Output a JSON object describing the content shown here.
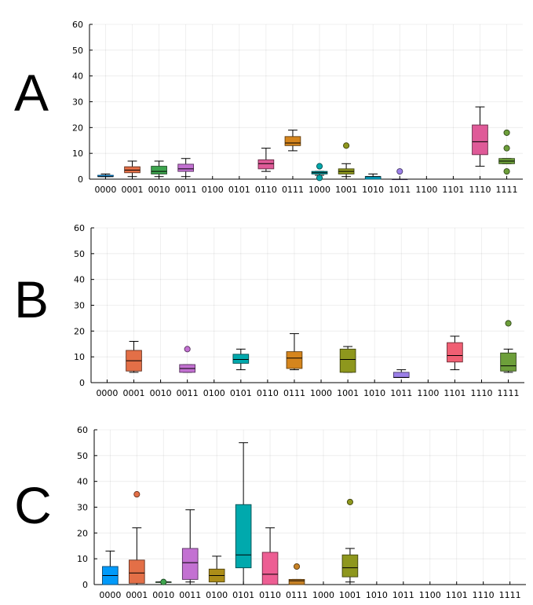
{
  "chart_data": [
    {
      "type": "box",
      "label": "A",
      "title": "",
      "xlabel": "",
      "ylabel": "",
      "ylim": [
        0,
        60
      ],
      "yticks": [
        0,
        10,
        20,
        30,
        40,
        50,
        60
      ],
      "grid": true,
      "categories": [
        "0000",
        "0001",
        "0010",
        "0011",
        "0100",
        "0101",
        "0110",
        "0111",
        "1000",
        "1001",
        "1010",
        "1011",
        "1100",
        "1101",
        "1110",
        "1111"
      ],
      "boxes": [
        {
          "category": "0000",
          "color": "#009AFA",
          "min": 1,
          "q1": 1,
          "median": 1,
          "q3": 1.5,
          "max": 2,
          "outliers": []
        },
        {
          "category": "0001",
          "color": "#E36F47",
          "min": 1,
          "q1": 2.5,
          "median": 3.5,
          "q3": 4.8,
          "max": 7,
          "outliers": []
        },
        {
          "category": "0010",
          "color": "#3EA44E",
          "min": 1,
          "q1": 2,
          "median": 3,
          "q3": 5,
          "max": 7,
          "outliers": []
        },
        {
          "category": "0011",
          "color": "#C371D2",
          "min": 1,
          "q1": 3,
          "median": 4,
          "q3": 5.8,
          "max": 8,
          "outliers": []
        },
        {
          "category": "0110",
          "color": "#DF5A98",
          "min": 3,
          "q1": 4,
          "median": 6,
          "q3": 7.5,
          "max": 12,
          "outliers": []
        },
        {
          "category": "0111",
          "color": "#D5851D",
          "min": 11,
          "q1": 13,
          "median": 14,
          "q3": 16.5,
          "max": 19,
          "outliers": []
        },
        {
          "category": "1000",
          "color": "#00A9AD",
          "min": 1.5,
          "q1": 2,
          "median": 2.5,
          "q3": 3,
          "max": 3,
          "outliers": [
            5,
            0.5
          ]
        },
        {
          "category": "1001",
          "color": "#8E971D",
          "min": 1,
          "q1": 2,
          "median": 3,
          "q3": 4,
          "max": 6,
          "outliers": [
            13
          ]
        },
        {
          "category": "1010",
          "color": "#00A8CB",
          "min": 0,
          "q1": 0,
          "median": 1,
          "q3": 1,
          "max": 2,
          "outliers": []
        },
        {
          "category": "1011",
          "color": "#9B7FE8",
          "min": 0,
          "q1": 0,
          "median": 0,
          "q3": 0,
          "max": 0,
          "outliers": [
            3
          ]
        },
        {
          "category": "1110",
          "color": "#DF5A98",
          "min": 5,
          "q1": 9.5,
          "median": 14.5,
          "q3": 21,
          "max": 28,
          "outliers": []
        },
        {
          "category": "1111",
          "color": "#6D9F3A",
          "min": 6,
          "q1": 6,
          "median": 7,
          "q3": 8,
          "max": 8,
          "outliers": [
            18,
            12,
            3
          ]
        }
      ]
    },
    {
      "type": "box",
      "label": "B",
      "title": "",
      "xlabel": "",
      "ylabel": "",
      "ylim": [
        0,
        60
      ],
      "yticks": [
        0,
        10,
        20,
        30,
        40,
        50,
        60
      ],
      "grid": true,
      "categories": [
        "0000",
        "0001",
        "0010",
        "0011",
        "0100",
        "0101",
        "0110",
        "0111",
        "1000",
        "1001",
        "1010",
        "1011",
        "1100",
        "1101",
        "1110",
        "1111"
      ],
      "boxes": [
        {
          "category": "0001",
          "color": "#E36F47",
          "min": 4,
          "q1": 4.5,
          "median": 8.5,
          "q3": 12.5,
          "max": 16,
          "outliers": []
        },
        {
          "category": "0011",
          "color": "#C371D2",
          "min": 4,
          "q1": 4,
          "median": 5.5,
          "q3": 7,
          "max": 7,
          "outliers": [
            13
          ]
        },
        {
          "category": "0101",
          "color": "#00A9AD",
          "min": 5,
          "q1": 7.5,
          "median": 9,
          "q3": 11,
          "max": 13,
          "outliers": []
        },
        {
          "category": "0111",
          "color": "#D5851D",
          "min": 5,
          "q1": 5.5,
          "median": 9.5,
          "q3": 12,
          "max": 19,
          "outliers": []
        },
        {
          "category": "1001",
          "color": "#8E971D",
          "min": 4,
          "q1": 4,
          "median": 9,
          "q3": 13,
          "max": 14,
          "outliers": []
        },
        {
          "category": "1011",
          "color": "#9B7FE8",
          "min": 2,
          "q1": 2,
          "median": 2,
          "q3": 4,
          "max": 5,
          "outliers": []
        },
        {
          "category": "1101",
          "color": "#F05F73",
          "min": 5,
          "q1": 8,
          "median": 10.5,
          "q3": 15.5,
          "max": 18,
          "outliers": []
        },
        {
          "category": "1111",
          "color": "#6D9F3A",
          "min": 4,
          "q1": 4.5,
          "median": 6.5,
          "q3": 11.5,
          "max": 13,
          "outliers": [
            23
          ]
        }
      ]
    },
    {
      "type": "box",
      "label": "C",
      "title": "",
      "xlabel": "",
      "ylabel": "",
      "ylim": [
        0,
        60
      ],
      "yticks": [
        0,
        10,
        20,
        30,
        40,
        50,
        60
      ],
      "grid": true,
      "categories": [
        "0000",
        "0001",
        "0010",
        "0011",
        "0100",
        "0101",
        "0110",
        "0111",
        "1000",
        "1001",
        "1010",
        "1011",
        "1100",
        "1101",
        "1110",
        "1111"
      ],
      "boxes": [
        {
          "category": "0000",
          "color": "#009AFA",
          "min": 0,
          "q1": 0,
          "median": 3.5,
          "q3": 7,
          "max": 13,
          "outliers": []
        },
        {
          "category": "0001",
          "color": "#E36F47",
          "min": 0,
          "q1": 0.5,
          "median": 4.5,
          "q3": 9.5,
          "max": 22,
          "outliers": [
            35
          ]
        },
        {
          "category": "0010",
          "color": "#3EA44E",
          "min": 1,
          "q1": 1,
          "median": 1,
          "q3": 1,
          "max": 1,
          "outliers": [
            1
          ]
        },
        {
          "category": "0011",
          "color": "#C371D2",
          "min": 1,
          "q1": 2,
          "median": 8.5,
          "q3": 14,
          "max": 29,
          "outliers": []
        },
        {
          "category": "0100",
          "color": "#AC8D18",
          "min": 0,
          "q1": 1,
          "median": 3.5,
          "q3": 6,
          "max": 11,
          "outliers": []
        },
        {
          "category": "0101",
          "color": "#00A9AD",
          "min": 0,
          "q1": 6.5,
          "median": 11.5,
          "q3": 31,
          "max": 55,
          "outliers": []
        },
        {
          "category": "0110",
          "color": "#ED5E93",
          "min": 0,
          "q1": 0,
          "median": 4,
          "q3": 12.5,
          "max": 22,
          "outliers": []
        },
        {
          "category": "0111",
          "color": "#C68125",
          "min": 0,
          "q1": 0,
          "median": 1.5,
          "q3": 2,
          "max": 2,
          "outliers": [
            7
          ]
        },
        {
          "category": "1001",
          "color": "#8E971D",
          "min": 1,
          "q1": 3,
          "median": 6.5,
          "q3": 11.5,
          "max": 14,
          "outliers": [
            32
          ]
        }
      ]
    }
  ]
}
